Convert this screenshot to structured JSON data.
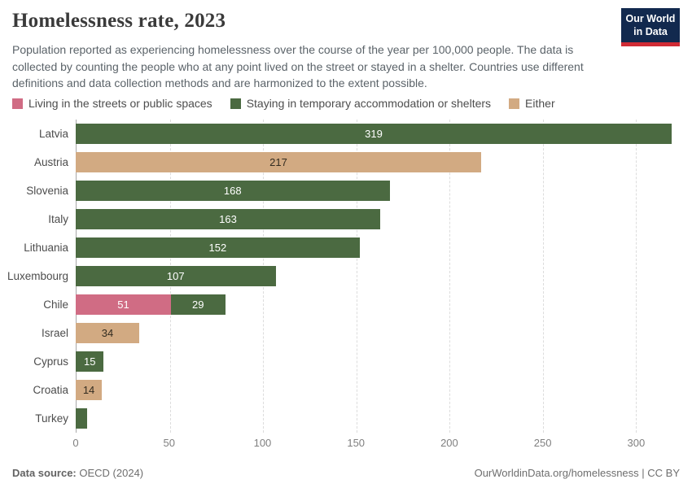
{
  "header": {
    "title": "Homelessness rate, 2023",
    "subtitle": "Population reported as experiencing homelessness over the course of the year per 100,000 people. The data is collected by counting the people who at any point lived on the street or stayed in a shelter. Countries use different definitions and data collection methods and are harmonized to the extent possible.",
    "logo": {
      "line1": "Our World",
      "line2": "in Data"
    }
  },
  "colors": {
    "logo_bg": "#12294e",
    "logo_stripe": "#d02b35",
    "streets": "#d06c84",
    "shelters": "#4b6a41",
    "either": "#d2aa82"
  },
  "chart_data": {
    "type": "bar",
    "orientation": "horizontal",
    "title": "Homelessness rate, 2023",
    "unit": "per 100,000 people",
    "xlim": [
      0,
      319
    ],
    "x_ticks": [
      0,
      50,
      100,
      150,
      200,
      250,
      300
    ],
    "grid": "vertical-dashed",
    "legend_position": "top",
    "series_meta": {
      "streets": {
        "name": "Living in the streets or public spaces",
        "color": "#d06c84",
        "label_color": "#ffffff"
      },
      "shelters": {
        "name": "Staying in temporary accommodation or shelters",
        "color": "#4b6a41",
        "label_color": "#ffffff"
      },
      "either": {
        "name": "Either",
        "color": "#d2aa82",
        "label_color": "#332c20"
      }
    },
    "legend_order": [
      "streets",
      "shelters",
      "either"
    ],
    "rows": [
      {
        "country": "Latvia",
        "segments": [
          {
            "series": "shelters",
            "value": 319,
            "label": "319"
          }
        ]
      },
      {
        "country": "Austria",
        "segments": [
          {
            "series": "either",
            "value": 217,
            "label": "217"
          }
        ]
      },
      {
        "country": "Slovenia",
        "segments": [
          {
            "series": "shelters",
            "value": 168,
            "label": "168"
          }
        ]
      },
      {
        "country": "Italy",
        "segments": [
          {
            "series": "shelters",
            "value": 163,
            "label": "163"
          }
        ]
      },
      {
        "country": "Lithuania",
        "segments": [
          {
            "series": "shelters",
            "value": 152,
            "label": "152"
          }
        ]
      },
      {
        "country": "Luxembourg",
        "segments": [
          {
            "series": "shelters",
            "value": 107,
            "label": "107"
          }
        ]
      },
      {
        "country": "Chile",
        "segments": [
          {
            "series": "streets",
            "value": 51,
            "label": "51"
          },
          {
            "series": "shelters",
            "value": 29,
            "label": "29"
          }
        ]
      },
      {
        "country": "Israel",
        "segments": [
          {
            "series": "either",
            "value": 34,
            "label": "34"
          }
        ]
      },
      {
        "country": "Cyprus",
        "segments": [
          {
            "series": "shelters",
            "value": 15,
            "label": "15"
          }
        ]
      },
      {
        "country": "Croatia",
        "segments": [
          {
            "series": "either",
            "value": 14,
            "label": "14"
          }
        ]
      },
      {
        "country": "Turkey",
        "segments": [
          {
            "series": "shelters",
            "value": 6,
            "label": ""
          }
        ]
      }
    ]
  },
  "footer": {
    "source_label": "Data source:",
    "source_value": "OECD (2024)",
    "credit": "OurWorldinData.org/homelessness | CC BY"
  }
}
